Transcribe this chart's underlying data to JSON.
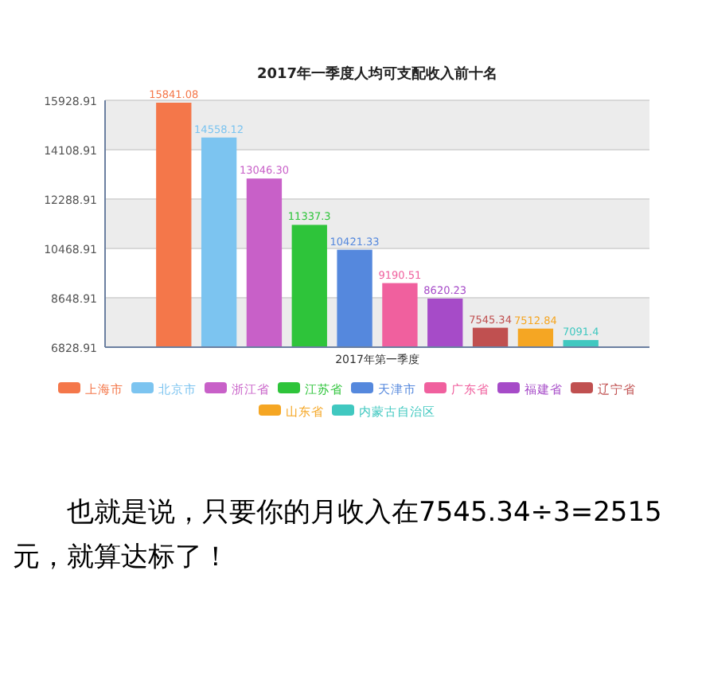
{
  "chart_data": {
    "type": "bar",
    "title": "2017年一季度人均可支配收入前十名",
    "categories": [
      "2017年第一季度"
    ],
    "series": [
      {
        "name": "上海市",
        "color": "#f4774a",
        "values": [
          15841.08
        ],
        "value_labels": [
          "15841.08"
        ]
      },
      {
        "name": "北京市",
        "color": "#7cc4f0",
        "values": [
          14558.12
        ],
        "value_labels": [
          "14558.12"
        ]
      },
      {
        "name": "浙江省",
        "color": "#c860c8",
        "values": [
          13046.3
        ],
        "value_labels": [
          "13046.30"
        ]
      },
      {
        "name": "江苏省",
        "color": "#2ec43a",
        "values": [
          11337.3
        ],
        "value_labels": [
          "11337.3"
        ]
      },
      {
        "name": "天津市",
        "color": "#5588dd",
        "values": [
          10421.33
        ],
        "value_labels": [
          "10421.33"
        ]
      },
      {
        "name": "广东省",
        "color": "#f0609e",
        "values": [
          9190.51
        ],
        "value_labels": [
          "9190.51"
        ]
      },
      {
        "name": "福建省",
        "color": "#a64bc8",
        "values": [
          8620.23
        ],
        "value_labels": [
          "8620.23"
        ]
      },
      {
        "name": "辽宁省",
        "color": "#c05050",
        "values": [
          7545.34
        ],
        "value_labels": [
          "7545.34"
        ]
      },
      {
        "name": "山东省",
        "color": "#f5a623",
        "values": [
          7512.84
        ],
        "value_labels": [
          "7512.84"
        ]
      },
      {
        "name": "内蒙古自治区",
        "color": "#40c8c0",
        "values": [
          7091.4
        ],
        "value_labels": [
          "7091.4"
        ]
      }
    ],
    "ylim": [
      6828.91,
      15928.91
    ],
    "yticks": [
      6828.91,
      8648.91,
      10468.91,
      12288.91,
      14108.91,
      15928.91
    ],
    "grid": "y",
    "legend": "bottom",
    "annotations": [
      "也就是说，只要你的月收入在7545.34÷3=2515元，就算达标了！"
    ]
  }
}
